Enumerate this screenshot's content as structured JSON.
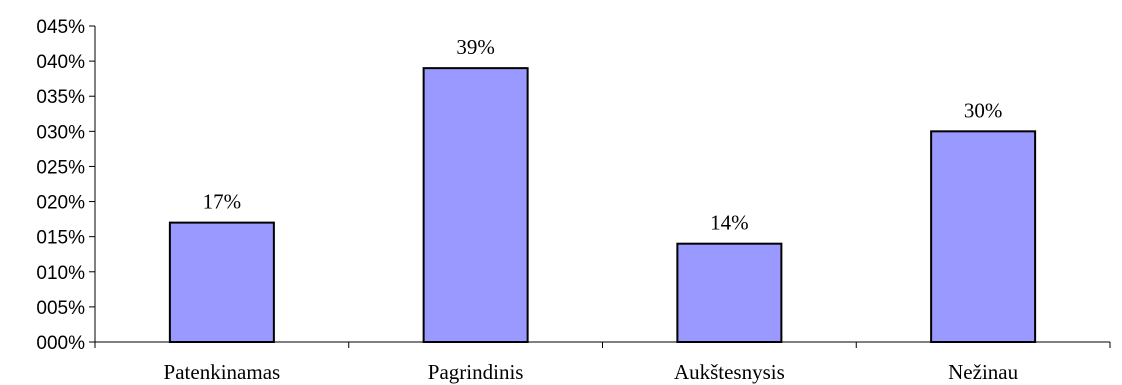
{
  "chart_data": {
    "type": "bar",
    "categories": [
      "Patenkinamas",
      "Pagrindinis",
      "Aukštesnysis",
      "Nežinau"
    ],
    "values": [
      17,
      39,
      14,
      30
    ],
    "value_labels": [
      "17%",
      "39%",
      "14%",
      "30%"
    ],
    "ylim": [
      0,
      45
    ],
    "yticks": [
      0,
      5,
      10,
      15,
      20,
      25,
      30,
      35,
      40,
      45
    ],
    "ytick_labels": [
      "000%",
      "005%",
      "010%",
      "015%",
      "020%",
      "025%",
      "030%",
      "035%",
      "040%",
      "045%"
    ],
    "title": "",
    "xlabel": "",
    "ylabel": "",
    "grid": false,
    "legend": "none",
    "colors": {
      "bar_fill": "#9999ff",
      "bar_stroke": "#000000",
      "axis": "#000000"
    }
  }
}
